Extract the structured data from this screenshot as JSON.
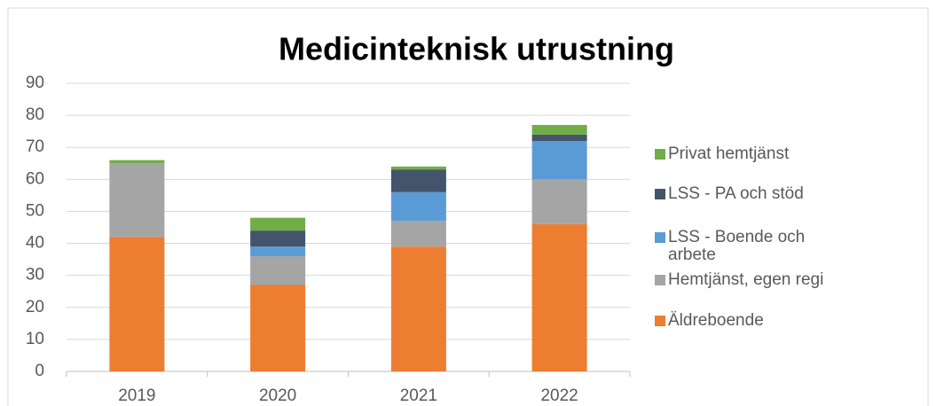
{
  "chart_data": {
    "type": "stacked_bar",
    "title": "Medicinteknisk utrustning",
    "categories": [
      "2019",
      "2020",
      "2021",
      "2022"
    ],
    "series": [
      {
        "name": "Äldreboende",
        "color": "#ed7d31",
        "values": [
          42,
          27,
          39,
          46
        ]
      },
      {
        "name": "Hemtjänst, egen regi",
        "color": "#a5a5a5",
        "values": [
          23,
          9,
          8,
          14
        ]
      },
      {
        "name": "LSS - Boende och arbete",
        "color": "#5b9bd5",
        "values": [
          0,
          3,
          9,
          12
        ]
      },
      {
        "name": "LSS - PA och stöd",
        "color": "#44546a",
        "values": [
          0,
          5,
          7,
          2
        ]
      },
      {
        "name": "Privat hemtjänst",
        "color": "#70ad47",
        "values": [
          1,
          4,
          1,
          3
        ]
      }
    ],
    "ylim": [
      0,
      90
    ],
    "yticks": [
      0,
      10,
      20,
      30,
      40,
      50,
      60,
      70,
      80,
      90
    ],
    "grid": true,
    "legend": "right"
  }
}
